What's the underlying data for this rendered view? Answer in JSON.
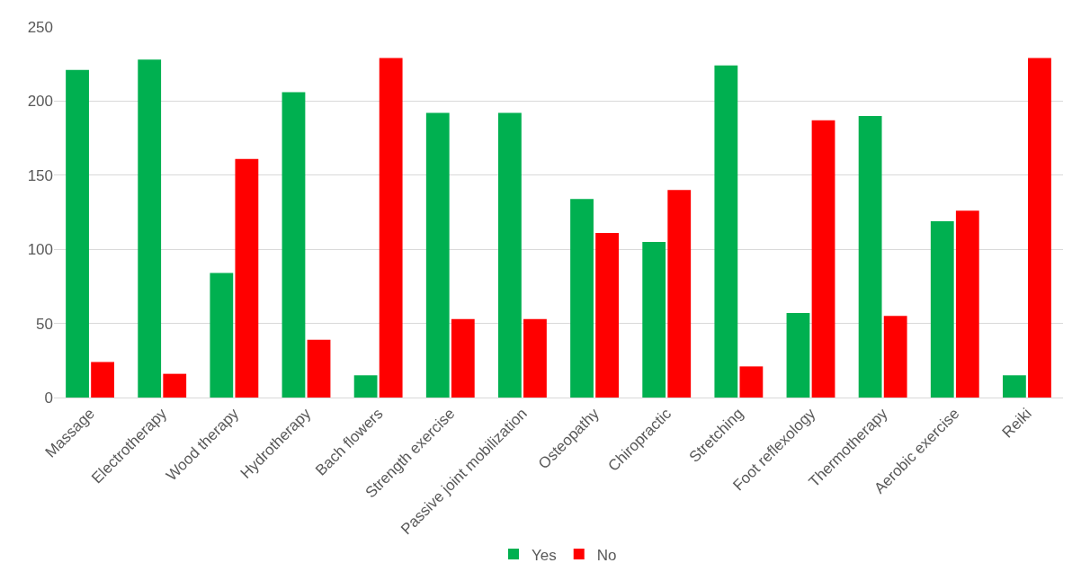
{
  "chart_data": {
    "type": "bar",
    "categories": [
      "Massage",
      "Electrotherapy",
      "Wood therapy",
      "Hydrotherapy",
      "Bach flowers",
      "Strength exercise",
      "Passive joint mobilization",
      "Osteopathy",
      "Chiropractic",
      "Stretching",
      "Foot reflexology",
      "Thermotherapy",
      "Aerobic exercise",
      "Reiki"
    ],
    "series": [
      {
        "name": "Yes",
        "color": "#00b050",
        "values": [
          221,
          228,
          84,
          206,
          15,
          192,
          192,
          134,
          105,
          224,
          57,
          190,
          119,
          15
        ]
      },
      {
        "name": "No",
        "color": "#ff0000",
        "values": [
          24,
          16,
          161,
          39,
          229,
          53,
          53,
          111,
          140,
          21,
          187,
          55,
          126,
          229
        ]
      }
    ],
    "ylim": [
      0,
      250
    ],
    "yticks": [
      0,
      50,
      100,
      150,
      200,
      250
    ],
    "grid": "y",
    "legend": "bottom"
  }
}
